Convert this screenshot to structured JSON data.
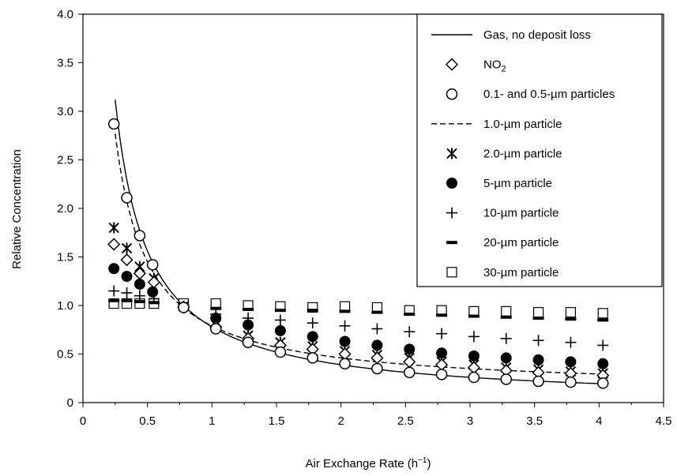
{
  "chart_data": {
    "type": "scatter",
    "title": "",
    "xlabel": "Air Exchange Rate (h⁻¹)",
    "ylabel": "Relative Concentration",
    "xlim": [
      0,
      4.5
    ],
    "ylim": [
      0,
      4.0
    ],
    "x_ticks": [
      "0",
      "0.5",
      "1",
      "1.5",
      "2",
      "2.5",
      "3",
      "3.5",
      "4",
      "4.5"
    ],
    "y_ticks": [
      "0",
      "0.5",
      "1.0",
      "1.5",
      "2.0",
      "2.5",
      "3.0",
      "3.5",
      "4.0"
    ],
    "grid": false,
    "legend_position": "top-right",
    "legend": [
      {
        "label": "Gas, no deposit loss",
        "marker": "solid-line"
      },
      {
        "label": "NO2",
        "marker": "diamond"
      },
      {
        "label": "0.1- and 0.5-µm particles",
        "marker": "open-circle"
      },
      {
        "label": "1.0-µm particle",
        "marker": "dashed-line"
      },
      {
        "label": "2.0-µm particle",
        "marker": "asterisk"
      },
      {
        "label": "5-µm particle",
        "marker": "filled-circle"
      },
      {
        "label": "10-µm particle",
        "marker": "plus"
      },
      {
        "label": "20-µm particle",
        "marker": "bar"
      },
      {
        "label": "30-µm particle",
        "marker": "open-square"
      }
    ],
    "series": [
      {
        "name": "Gas, no deposit loss",
        "style": "solid-line",
        "curve": "k/x",
        "k": 0.78,
        "x_range": [
          0.25,
          4.03
        ]
      },
      {
        "name": "1.0-µm particle",
        "style": "dashed-line",
        "curve": "k/x+c",
        "k": 0.66,
        "c": 0.13,
        "x_range": [
          0.25,
          4.03
        ]
      },
      {
        "name": "NO2",
        "marker": "diamond",
        "points": [
          [
            0.24,
            1.63
          ],
          [
            0.34,
            1.47
          ],
          [
            0.44,
            1.33
          ],
          [
            0.55,
            1.24
          ],
          [
            0.78,
            0.98
          ],
          [
            1.03,
            0.78
          ],
          [
            1.28,
            0.66
          ],
          [
            1.53,
            0.59
          ],
          [
            1.78,
            0.55
          ],
          [
            2.03,
            0.5
          ],
          [
            2.28,
            0.46
          ],
          [
            2.53,
            0.42
          ],
          [
            2.78,
            0.39
          ],
          [
            3.03,
            0.36
          ],
          [
            3.28,
            0.33
          ],
          [
            3.53,
            0.31
          ],
          [
            3.78,
            0.3
          ],
          [
            4.03,
            0.28
          ]
        ]
      },
      {
        "name": "0.1- and 0.5-µm particles",
        "marker": "open-circle",
        "points": [
          [
            0.24,
            2.87
          ],
          [
            0.34,
            2.11
          ],
          [
            0.44,
            1.72
          ],
          [
            0.54,
            1.42
          ],
          [
            0.78,
            0.98
          ],
          [
            1.03,
            0.76
          ],
          [
            1.28,
            0.62
          ],
          [
            1.53,
            0.52
          ],
          [
            1.78,
            0.46
          ],
          [
            2.03,
            0.4
          ],
          [
            2.28,
            0.35
          ],
          [
            2.53,
            0.31
          ],
          [
            2.78,
            0.29
          ],
          [
            3.03,
            0.26
          ],
          [
            3.28,
            0.24
          ],
          [
            3.53,
            0.22
          ],
          [
            3.78,
            0.21
          ],
          [
            4.03,
            0.2
          ]
        ]
      },
      {
        "name": "2.0-µm particle",
        "marker": "asterisk",
        "points": [
          [
            0.24,
            1.8
          ],
          [
            0.34,
            1.59
          ],
          [
            0.44,
            1.4
          ],
          [
            0.55,
            1.28
          ],
          [
            0.78,
            0.99
          ],
          [
            1.03,
            0.8
          ],
          [
            1.28,
            0.69
          ],
          [
            1.53,
            0.62
          ],
          [
            1.78,
            0.58
          ],
          [
            2.03,
            0.53
          ],
          [
            2.28,
            0.49
          ],
          [
            2.53,
            0.46
          ],
          [
            2.78,
            0.42
          ],
          [
            3.03,
            0.39
          ],
          [
            3.28,
            0.36
          ],
          [
            3.53,
            0.34
          ],
          [
            3.78,
            0.32
          ],
          [
            4.03,
            0.3
          ]
        ]
      },
      {
        "name": "5-µm particle",
        "marker": "filled-circle",
        "points": [
          [
            0.24,
            1.38
          ],
          [
            0.34,
            1.3
          ],
          [
            0.44,
            1.22
          ],
          [
            0.54,
            1.14
          ],
          [
            0.78,
            0.98
          ],
          [
            1.03,
            0.87
          ],
          [
            1.28,
            0.8
          ],
          [
            1.53,
            0.74
          ],
          [
            1.78,
            0.68
          ],
          [
            2.03,
            0.63
          ],
          [
            2.28,
            0.59
          ],
          [
            2.53,
            0.55
          ],
          [
            2.78,
            0.51
          ],
          [
            3.03,
            0.48
          ],
          [
            3.28,
            0.46
          ],
          [
            3.53,
            0.44
          ],
          [
            3.78,
            0.42
          ],
          [
            4.03,
            0.4
          ]
        ]
      },
      {
        "name": "10-µm particle",
        "marker": "plus",
        "points": [
          [
            0.24,
            1.15
          ],
          [
            0.34,
            1.13
          ],
          [
            0.44,
            1.1
          ],
          [
            0.55,
            1.07
          ],
          [
            0.78,
            0.99
          ],
          [
            1.03,
            0.91
          ],
          [
            1.28,
            0.87
          ],
          [
            1.53,
            0.85
          ],
          [
            1.78,
            0.82
          ],
          [
            2.03,
            0.79
          ],
          [
            2.28,
            0.76
          ],
          [
            2.53,
            0.73
          ],
          [
            2.78,
            0.71
          ],
          [
            3.03,
            0.68
          ],
          [
            3.28,
            0.66
          ],
          [
            3.53,
            0.64
          ],
          [
            3.78,
            0.62
          ],
          [
            4.03,
            0.59
          ]
        ]
      },
      {
        "name": "20-µm particle",
        "marker": "bar",
        "points": [
          [
            0.24,
            1.05
          ],
          [
            0.34,
            1.05
          ],
          [
            0.44,
            1.04
          ],
          [
            0.55,
            1.03
          ],
          [
            0.78,
            1.0
          ],
          [
            1.03,
            0.97
          ],
          [
            1.28,
            0.96
          ],
          [
            1.53,
            0.95
          ],
          [
            1.78,
            0.95
          ],
          [
            2.03,
            0.94
          ],
          [
            2.28,
            0.93
          ],
          [
            2.53,
            0.91
          ],
          [
            2.78,
            0.9
          ],
          [
            3.03,
            0.89
          ],
          [
            3.28,
            0.88
          ],
          [
            3.53,
            0.87
          ],
          [
            3.78,
            0.86
          ],
          [
            4.03,
            0.85
          ]
        ]
      },
      {
        "name": "30-µm particle",
        "marker": "open-square",
        "points": [
          [
            0.24,
            1.02
          ],
          [
            0.34,
            1.02
          ],
          [
            0.44,
            1.02
          ],
          [
            0.55,
            1.02
          ],
          [
            0.78,
            1.02
          ],
          [
            1.03,
            1.02
          ],
          [
            1.28,
            1.0
          ],
          [
            1.53,
            0.99
          ],
          [
            1.78,
            0.98
          ],
          [
            2.03,
            0.99
          ],
          [
            2.28,
            0.98
          ],
          [
            2.53,
            0.95
          ],
          [
            2.78,
            0.95
          ],
          [
            3.03,
            0.94
          ],
          [
            3.28,
            0.94
          ],
          [
            3.53,
            0.93
          ],
          [
            3.78,
            0.93
          ],
          [
            4.03,
            0.92
          ]
        ]
      }
    ]
  }
}
